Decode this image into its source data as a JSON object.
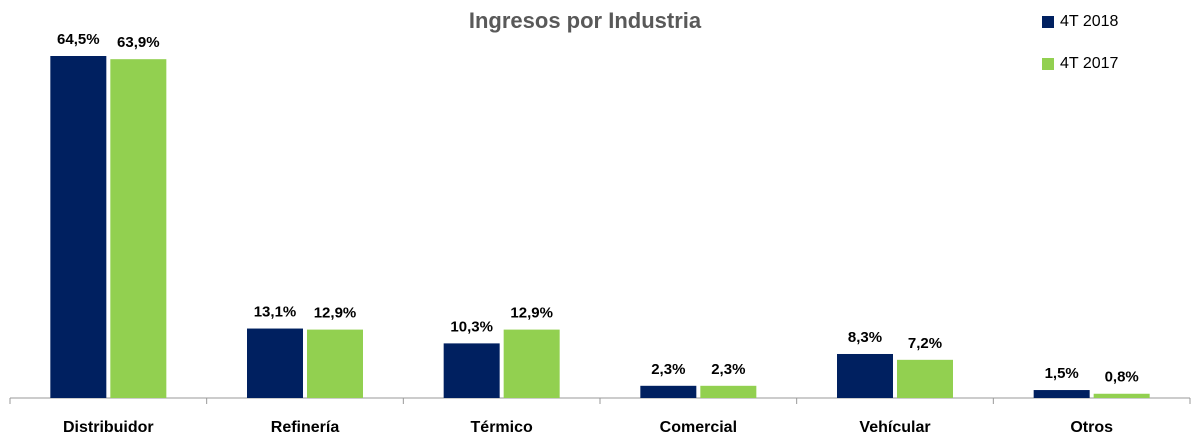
{
  "chart_data": {
    "type": "bar",
    "title": "Ingresos por Industria",
    "categories": [
      "Distribuidor",
      "Refinería",
      "Térmico",
      "Comercial",
      "Vehícular",
      "Otros"
    ],
    "series": [
      {
        "name": "4T 2018",
        "color": "#002060",
        "values": [
          64.5,
          13.1,
          10.3,
          2.3,
          8.3,
          1.5
        ],
        "value_labels": [
          "64,5%",
          "13,1%",
          "10,3%",
          "2,3%",
          "8,3%",
          "1,5%"
        ]
      },
      {
        "name": "4T 2017",
        "color": "#92d050",
        "values": [
          63.9,
          12.9,
          12.9,
          2.3,
          7.2,
          0.8
        ],
        "value_labels": [
          "63,9%",
          "12,9%",
          "12,9%",
          "2,3%",
          "7,2%",
          "0,8%"
        ]
      }
    ],
    "legend": "upper right"
  }
}
